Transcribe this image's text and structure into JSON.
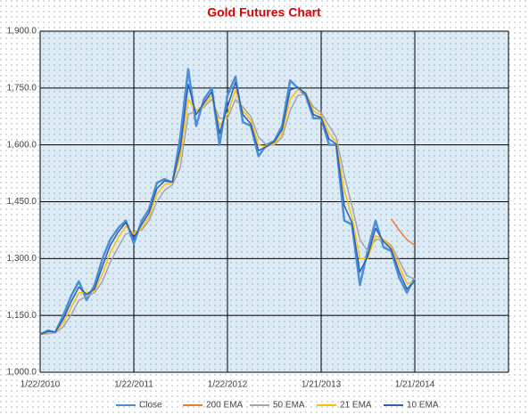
{
  "chart_data": {
    "type": "line",
    "title": "Gold Futures Chart",
    "x": [
      "2010-01-22",
      "2010-02-22",
      "2010-03-22",
      "2010-04-22",
      "2010-05-22",
      "2010-06-22",
      "2010-07-22",
      "2010-08-22",
      "2010-09-22",
      "2010-10-22",
      "2010-11-22",
      "2010-12-22",
      "2011-01-22",
      "2011-02-22",
      "2011-03-22",
      "2011-04-22",
      "2011-05-22",
      "2011-06-22",
      "2011-07-22",
      "2011-08-22",
      "2011-09-22",
      "2011-10-22",
      "2011-11-22",
      "2011-12-22",
      "2012-01-22",
      "2012-02-22",
      "2012-03-22",
      "2012-04-22",
      "2012-05-22",
      "2012-06-22",
      "2012-07-22",
      "2012-08-22",
      "2012-09-22",
      "2012-10-22",
      "2012-11-22",
      "2012-12-22",
      "2013-01-21",
      "2013-02-21",
      "2013-03-21",
      "2013-04-21",
      "2013-05-21",
      "2013-06-21",
      "2013-07-21",
      "2013-08-21",
      "2013-09-21",
      "2013-10-21",
      "2013-11-21",
      "2013-12-21",
      "2014-01-21"
    ],
    "series": [
      {
        "name": "Close",
        "color": "#4a8fd6",
        "values": [
          1100,
          1110,
          1105,
          1150,
          1200,
          1240,
          1190,
          1230,
          1300,
          1350,
          1380,
          1400,
          1340,
          1400,
          1430,
          1500,
          1510,
          1500,
          1620,
          1800,
          1650,
          1720,
          1750,
          1600,
          1730,
          1780,
          1660,
          1650,
          1570,
          1600,
          1610,
          1650,
          1770,
          1750,
          1730,
          1670,
          1670,
          1600,
          1600,
          1400,
          1390,
          1230,
          1320,
          1400,
          1330,
          1320,
          1250,
          1210,
          1250
        ]
      },
      {
        "name": "200 EMA",
        "color": "#ed7d31",
        "values": [
          null,
          null,
          null,
          null,
          null,
          null,
          null,
          null,
          null,
          null,
          null,
          null,
          null,
          null,
          null,
          null,
          null,
          null,
          null,
          null,
          null,
          null,
          null,
          null,
          null,
          null,
          null,
          null,
          null,
          null,
          null,
          null,
          null,
          null,
          null,
          null,
          null,
          null,
          null,
          null,
          null,
          null,
          null,
          null,
          null,
          1405,
          1375,
          1350,
          1335
        ]
      },
      {
        "name": "50 EMA",
        "color": "#a5a5a5",
        "values": [
          1100,
          1102,
          1104,
          1120,
          1150,
          1190,
          1200,
          1210,
          1240,
          1290,
          1330,
          1365,
          1370,
          1375,
          1400,
          1450,
          1480,
          1495,
          1540,
          1680,
          1690,
          1700,
          1720,
          1670,
          1670,
          1720,
          1700,
          1675,
          1620,
          1600,
          1600,
          1620,
          1690,
          1730,
          1735,
          1700,
          1685,
          1650,
          1620,
          1520,
          1440,
          1350,
          1320,
          1350,
          1350,
          1335,
          1295,
          1255,
          1245
        ]
      },
      {
        "name": "21 EMA",
        "color": "#ffc000",
        "values": [
          1100,
          1105,
          1106,
          1130,
          1170,
          1210,
          1210,
          1215,
          1260,
          1315,
          1355,
          1385,
          1365,
          1380,
          1410,
          1470,
          1495,
          1500,
          1570,
          1720,
          1690,
          1705,
          1730,
          1650,
          1680,
          1745,
          1690,
          1665,
          1600,
          1595,
          1603,
          1630,
          1720,
          1745,
          1738,
          1690,
          1678,
          1630,
          1608,
          1480,
          1410,
          1300,
          1300,
          1360,
          1350,
          1330,
          1280,
          1235,
          1238
        ]
      },
      {
        "name": "10 EMA",
        "color": "#2f5fb3",
        "values": [
          1100,
          1108,
          1106,
          1140,
          1185,
          1225,
          1205,
          1220,
          1280,
          1335,
          1370,
          1395,
          1355,
          1390,
          1420,
          1485,
          1505,
          1502,
          1590,
          1760,
          1680,
          1710,
          1740,
          1630,
          1700,
          1765,
          1680,
          1655,
          1585,
          1595,
          1608,
          1640,
          1745,
          1752,
          1735,
          1680,
          1672,
          1615,
          1602,
          1440,
          1395,
          1265,
          1305,
          1380,
          1345,
          1325,
          1265,
          1220,
          1240
        ]
      }
    ],
    "xlim": [
      "2010-01-22",
      "2015-01-21"
    ],
    "xticks": [
      {
        "value": "2010-01-22",
        "label": "1/22/2010"
      },
      {
        "value": "2011-01-22",
        "label": "1/22/2011"
      },
      {
        "value": "2012-01-22",
        "label": "1/22/2012"
      },
      {
        "value": "2013-01-21",
        "label": "1/21/2013"
      },
      {
        "value": "2014-01-21",
        "label": "1/21/2014"
      }
    ],
    "ylim": [
      1000,
      1900
    ],
    "yticks": [
      {
        "value": 1000,
        "label": "1,000.0"
      },
      {
        "value": 1150,
        "label": "1,150.0"
      },
      {
        "value": 1300,
        "label": "1,300.0"
      },
      {
        "value": 1450,
        "label": "1,450.0"
      },
      {
        "value": 1600,
        "label": "1,600.0"
      },
      {
        "value": 1750,
        "label": "1,750.0"
      },
      {
        "value": 1900,
        "label": "1,900.0"
      }
    ],
    "grid": true,
    "legend": "bottom"
  }
}
